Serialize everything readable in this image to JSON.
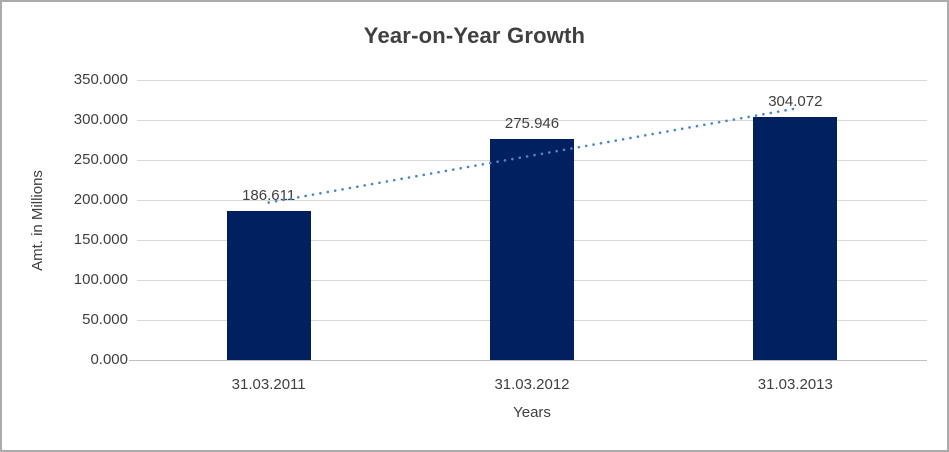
{
  "chart_data": {
    "type": "bar",
    "title": "Year-on-Year Growth",
    "xlabel": "Years",
    "ylabel": "Amt. in Millions",
    "categories": [
      "31.03.2011",
      "31.03.2012",
      "31.03.2013"
    ],
    "values": [
      186.611,
      275.946,
      304.072
    ],
    "value_labels": [
      "186.611",
      "275.946",
      "304.072"
    ],
    "ylim": [
      0,
      350
    ],
    "ytick_step": 50,
    "ytick_labels": [
      "0.000",
      "50.000",
      "100.000",
      "150.000",
      "200.000",
      "250.000",
      "300.000",
      "350.000"
    ],
    "grid": "horizontal",
    "legend": "none",
    "trendline": {
      "type": "linear",
      "style": "dotted"
    }
  },
  "colors": {
    "bar": "#002060",
    "trendline": "#4a86c8",
    "gridline": "#d9d9d9",
    "axis_line": "#bfbfbf",
    "text": "#404040",
    "title_text": "#404040",
    "border": "#ababab",
    "background": "#ffffff"
  }
}
